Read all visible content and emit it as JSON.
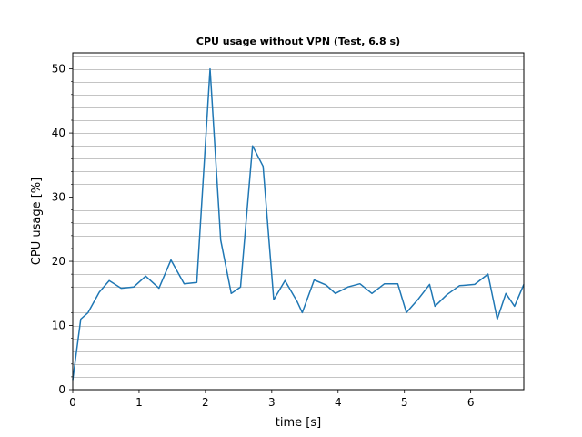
{
  "chart_data": {
    "type": "line",
    "title": "CPU usage without VPN (Test, 6.8 s)",
    "xlabel": "time [s]",
    "ylabel": "CPU usage [%]",
    "xlim": [
      0,
      6.8
    ],
    "ylim": [
      0,
      52.5
    ],
    "x_ticks": [
      0,
      1,
      2,
      3,
      4,
      5,
      6
    ],
    "y_ticks": [
      0,
      10,
      20,
      30,
      40,
      50
    ],
    "y_minor_step": 2,
    "grid": "y-major-and-minor",
    "colors": {
      "line": "#1f77b4",
      "grid": "#b0b0b0"
    },
    "series": [
      {
        "x": [
          0.0,
          0.12,
          0.23,
          0.4,
          0.55,
          0.73,
          0.92,
          1.1,
          1.3,
          1.48,
          1.68,
          1.87,
          2.07,
          2.23,
          2.39,
          2.53,
          2.71,
          2.87,
          3.03,
          3.2,
          3.38,
          3.46,
          3.64,
          3.82,
          3.96,
          4.15,
          4.33,
          4.51,
          4.7,
          4.9,
          5.03,
          5.2,
          5.38,
          5.46,
          5.64,
          5.83,
          6.06,
          6.26,
          6.4,
          6.53,
          6.66,
          6.8
        ],
        "y": [
          1.5,
          11,
          12,
          15.2,
          17,
          15.8,
          16,
          17.7,
          15.8,
          20.2,
          16.5,
          16.7,
          50,
          23.3,
          15,
          16,
          38,
          34.8,
          14,
          17,
          13.8,
          12,
          17.1,
          16.3,
          15,
          16,
          16.5,
          15,
          16.5,
          16.5,
          12,
          14,
          16.4,
          13,
          14.8,
          16.2,
          16.4,
          18,
          11,
          15,
          13,
          16.4
        ]
      }
    ]
  }
}
